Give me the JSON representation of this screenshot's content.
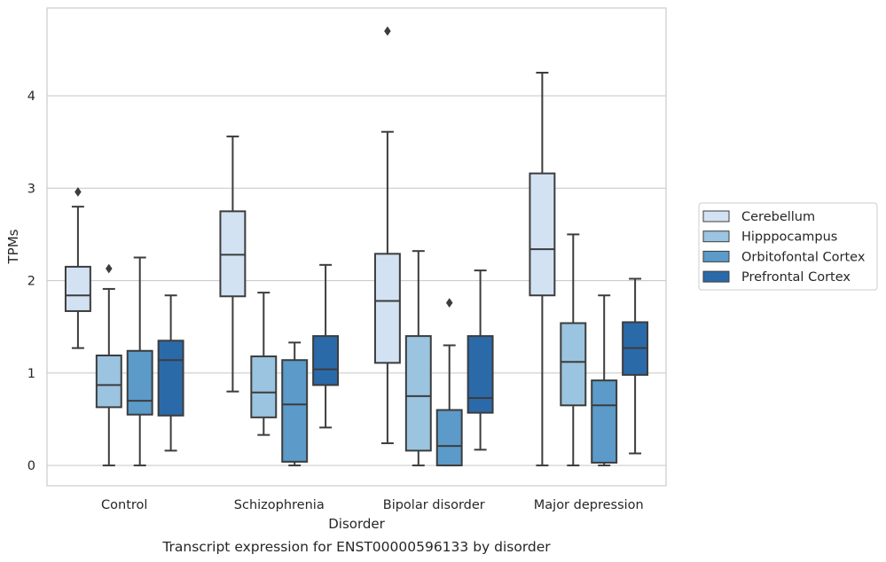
{
  "chart_data": {
    "type": "box",
    "xlabel": "Disorder",
    "ylabel": "TPMs",
    "caption": "Transcript expression for ENST00000596133 by disorder",
    "categories": [
      "Control",
      "Schizophrenia",
      "Bipolar disorder",
      "Major depression"
    ],
    "ylim": [
      -0.22,
      4.95
    ],
    "yticks": [
      0,
      1,
      2,
      3,
      4
    ],
    "grid": "horizontal",
    "legend_position": "right",
    "series": [
      {
        "name": "Cerebellum",
        "color": "#d2e2f3",
        "boxes": [
          {
            "whislo": 1.27,
            "q1": 1.67,
            "med": 1.84,
            "q3": 2.15,
            "whishi": 2.8,
            "fliers": [
              2.96
            ]
          },
          {
            "whislo": 0.8,
            "q1": 1.83,
            "med": 2.28,
            "q3": 2.75,
            "whishi": 3.56,
            "fliers": []
          },
          {
            "whislo": 0.24,
            "q1": 1.11,
            "med": 1.78,
            "q3": 2.29,
            "whishi": 3.61,
            "fliers": [
              4.7
            ]
          },
          {
            "whislo": 0.0,
            "q1": 1.84,
            "med": 2.34,
            "q3": 3.16,
            "whishi": 4.25,
            "fliers": []
          }
        ]
      },
      {
        "name": "Hipppocampus",
        "color": "#9ac4df",
        "boxes": [
          {
            "whislo": 0.0,
            "q1": 0.63,
            "med": 0.87,
            "q3": 1.19,
            "whishi": 1.91,
            "fliers": [
              2.13
            ]
          },
          {
            "whislo": 0.33,
            "q1": 0.52,
            "med": 0.79,
            "q3": 1.18,
            "whishi": 1.87,
            "fliers": []
          },
          {
            "whislo": 0.0,
            "q1": 0.16,
            "med": 0.75,
            "q3": 1.4,
            "whishi": 2.32,
            "fliers": []
          },
          {
            "whislo": 0.0,
            "q1": 0.65,
            "med": 1.12,
            "q3": 1.54,
            "whishi": 2.5,
            "fliers": []
          }
        ]
      },
      {
        "name": "Orbitofontal Cortex",
        "color": "#5b9ac9",
        "boxes": [
          {
            "whislo": 0.0,
            "q1": 0.55,
            "med": 0.7,
            "q3": 1.24,
            "whishi": 2.25,
            "fliers": []
          },
          {
            "whislo": 0.0,
            "q1": 0.04,
            "med": 0.66,
            "q3": 1.14,
            "whishi": 1.33,
            "fliers": []
          },
          {
            "whislo": 0.0,
            "q1": 0.0,
            "med": 0.21,
            "q3": 0.6,
            "whishi": 1.3,
            "fliers": [
              1.76
            ]
          },
          {
            "whislo": 0.0,
            "q1": 0.03,
            "med": 0.65,
            "q3": 0.92,
            "whishi": 1.84,
            "fliers": []
          }
        ]
      },
      {
        "name": "Prefrontal Cortex",
        "color": "#2b6aa9",
        "boxes": [
          {
            "whislo": 0.16,
            "q1": 0.54,
            "med": 1.14,
            "q3": 1.35,
            "whishi": 1.84,
            "fliers": []
          },
          {
            "whislo": 0.41,
            "q1": 0.87,
            "med": 1.04,
            "q3": 1.4,
            "whishi": 2.17,
            "fliers": []
          },
          {
            "whislo": 0.17,
            "q1": 0.57,
            "med": 0.73,
            "q3": 1.4,
            "whishi": 2.11,
            "fliers": []
          },
          {
            "whislo": 0.13,
            "q1": 0.98,
            "med": 1.27,
            "q3": 1.55,
            "whishi": 2.02,
            "fliers": []
          }
        ]
      }
    ]
  },
  "style": {
    "grid_color": "#cccccc",
    "frame_color": "#cccccc",
    "line_color": "#3c3c3c",
    "text_color": "#262626"
  }
}
